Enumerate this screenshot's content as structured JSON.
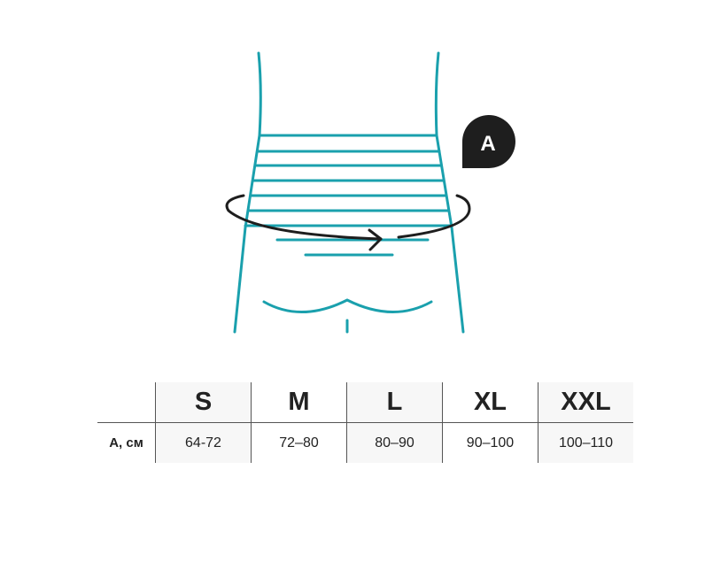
{
  "diagram": {
    "badge_label": "A",
    "line_color": "#1aa0ad",
    "arrow_color": "#1e1e1e"
  },
  "size_table": {
    "sizes": [
      "S",
      "M",
      "L",
      "XL",
      "XXL"
    ],
    "row_label": "A, см",
    "values": [
      "64-72",
      "72–80",
      "80–90",
      "90–100",
      "100–110"
    ]
  }
}
